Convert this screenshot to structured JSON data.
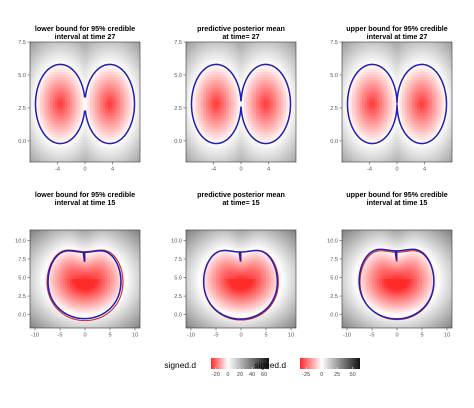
{
  "chart_data": [
    {
      "type": "heatmap",
      "title": [
        "lower bound for 95% credible",
        "interval at time 27"
      ],
      "xlabel": "",
      "ylabel": "",
      "xlim": [
        -8,
        8
      ],
      "ylim": [
        -1.6,
        7.5
      ],
      "xticks": [
        "-4",
        "0",
        "4"
      ],
      "xtick_values": [
        -4,
        0,
        4
      ],
      "yticks": [
        "0.0",
        "2.5",
        "5.0",
        "7.5"
      ],
      "ytick_values": [
        0,
        2.5,
        5,
        7.5
      ],
      "shape": "two-lobes",
      "gap": 0.55,
      "grid": false,
      "contour_colors": [
        "#1f1fb4",
        "#d62728"
      ]
    },
    {
      "type": "heatmap",
      "title": [
        "predictive posterior mean",
        "at time= 27"
      ],
      "xlabel": "",
      "ylabel": "",
      "xlim": [
        -8,
        8
      ],
      "ylim": [
        -1.6,
        7.5
      ],
      "xticks": [
        "-4",
        "0",
        "4"
      ],
      "xtick_values": [
        -4,
        0,
        4
      ],
      "yticks": [
        "0.0",
        "2.5",
        "5.0",
        "7.5"
      ],
      "ytick_values": [
        0,
        2.5,
        5,
        7.5
      ],
      "shape": "two-lobes",
      "gap": 0.25,
      "grid": false,
      "contour_colors": [
        "#1f1fb4",
        "#d62728"
      ]
    },
    {
      "type": "heatmap",
      "title": [
        "upper bound for 95% credible",
        "interval at time 27"
      ],
      "xlabel": "",
      "ylabel": "",
      "xlim": [
        -8,
        8
      ],
      "ylim": [
        -1.6,
        7.5
      ],
      "xticks": [
        "-4",
        "0",
        "4"
      ],
      "xtick_values": [
        -4,
        0,
        4
      ],
      "yticks": [
        "0.0",
        "2.5",
        "5.0",
        "7.5"
      ],
      "ytick_values": [
        0,
        2.5,
        5,
        7.5
      ],
      "shape": "two-lobes",
      "gap": 0.08,
      "grid": false,
      "contour_colors": [
        "#1f1fb4",
        "#d62728"
      ]
    },
    {
      "type": "heatmap",
      "title": [
        "lower bound for 95% credible",
        "interval at time 15"
      ],
      "xlabel": "",
      "ylabel": "",
      "xlim": [
        -11,
        11
      ],
      "ylim": [
        -1.8,
        11.4
      ],
      "xticks": [
        "-10",
        "-5",
        "0",
        "5",
        "10"
      ],
      "xtick_values": [
        -10,
        -5,
        0,
        5,
        10
      ],
      "yticks": [
        "0.0",
        "2.5",
        "5.0",
        "7.5",
        "10.0"
      ],
      "ytick_values": [
        0,
        2.5,
        5,
        7.5,
        10
      ],
      "shape": "heart",
      "grid": false,
      "contour_colors": [
        "#1f1fb4",
        "#d62728"
      ]
    },
    {
      "type": "heatmap",
      "title": [
        "predictive posterior mean",
        "at time= 15"
      ],
      "xlabel": "",
      "ylabel": "",
      "xlim": [
        -11,
        11
      ],
      "ylim": [
        -1.8,
        11.4
      ],
      "xticks": [
        "-10",
        "-5",
        "0",
        "5",
        "10"
      ],
      "xtick_values": [
        -10,
        -5,
        0,
        5,
        10
      ],
      "yticks": [
        "0.0",
        "2.5",
        "5.0",
        "7.5",
        "10.0"
      ],
      "ytick_values": [
        0,
        2.5,
        5,
        7.5,
        10
      ],
      "shape": "heart",
      "grid": false,
      "contour_colors": [
        "#1f1fb4",
        "#d62728"
      ]
    },
    {
      "type": "heatmap",
      "title": [
        "upper bound for 95% credible",
        "interval at time 15"
      ],
      "xlabel": "",
      "ylabel": "",
      "xlim": [
        -11,
        11
      ],
      "ylim": [
        -1.8,
        11.4
      ],
      "xticks": [
        "-10",
        "-5",
        "0",
        "5",
        "10"
      ],
      "xtick_values": [
        -10,
        -5,
        0,
        5,
        10
      ],
      "yticks": [
        "0.0",
        "2.5",
        "5.0",
        "7.5",
        "10.0"
      ],
      "ytick_values": [
        0,
        2.5,
        5,
        7.5,
        10
      ],
      "shape": "heart",
      "grid": false,
      "contour_colors": [
        "#1f1fb4",
        "#d62728"
      ]
    }
  ],
  "legends": [
    {
      "title": "signed.d",
      "ticks": [
        "-20",
        "0",
        "20",
        "40",
        "60"
      ],
      "tick_values": [
        -20,
        0,
        20,
        40,
        60
      ],
      "range": [
        -28,
        68
      ],
      "zero_at": 0,
      "low_color": "#ff2a2a",
      "mid_color": "#ffffff",
      "high_color": "#111111"
    },
    {
      "title": "signed.d",
      "ticks": [
        "-25",
        "0",
        "25",
        "50"
      ],
      "tick_values": [
        -25,
        0,
        25,
        50
      ],
      "range": [
        -35,
        62
      ],
      "zero_at": 0,
      "low_color": "#ff2a2a",
      "mid_color": "#ffffff",
      "high_color": "#111111"
    }
  ]
}
